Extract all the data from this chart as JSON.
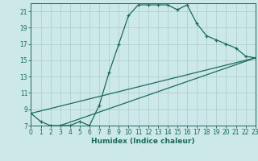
{
  "xlabel": "Humidex (Indice chaleur)",
  "bg_color": "#cce8e8",
  "grid_color": "#aacccc",
  "line_color": "#1a6b5a",
  "line1_x": [
    0,
    1,
    2,
    3,
    4,
    5,
    6,
    7,
    8,
    9,
    10,
    11,
    12,
    13,
    14,
    15,
    16,
    17,
    18,
    19,
    20,
    21,
    22,
    23
  ],
  "line1_y": [
    8.5,
    7.5,
    7.0,
    7.0,
    7.0,
    7.5,
    7.0,
    9.5,
    13.5,
    17.0,
    20.5,
    21.8,
    21.8,
    21.8,
    21.8,
    21.2,
    21.8,
    19.5,
    18.0,
    17.5,
    17.0,
    16.5,
    15.5,
    15.3
  ],
  "line2_x": [
    0,
    23
  ],
  "line2_y": [
    8.5,
    15.3
  ],
  "line3_x": [
    3,
    23
  ],
  "line3_y": [
    7.0,
    15.3
  ],
  "xlim": [
    0,
    23
  ],
  "ylim": [
    7,
    22
  ],
  "xticks": [
    0,
    1,
    2,
    3,
    4,
    5,
    6,
    7,
    8,
    9,
    10,
    11,
    12,
    13,
    14,
    15,
    16,
    17,
    18,
    19,
    20,
    21,
    22,
    23
  ],
  "yticks": [
    7,
    9,
    11,
    13,
    15,
    17,
    19,
    21
  ],
  "tick_fontsize": 5.5,
  "xlabel_fontsize": 6.5
}
